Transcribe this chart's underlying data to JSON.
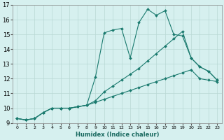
{
  "xlabel": "Humidex (Indice chaleur)",
  "xlim": [
    -0.5,
    23.5
  ],
  "ylim": [
    9,
    17
  ],
  "xticks": [
    0,
    1,
    2,
    3,
    4,
    5,
    6,
    7,
    8,
    9,
    10,
    11,
    12,
    13,
    14,
    15,
    16,
    17,
    18,
    19,
    20,
    21,
    22,
    23
  ],
  "yticks": [
    9,
    10,
    11,
    12,
    13,
    14,
    15,
    16,
    17
  ],
  "bg_color": "#d6f0ef",
  "grid_color": "#b8d8d5",
  "line_color": "#1a7a6e",
  "line1_x": [
    0,
    1,
    2,
    3,
    4,
    5,
    6,
    7,
    8,
    9,
    10,
    11,
    12,
    13,
    14,
    15,
    16,
    17,
    18,
    19,
    20,
    21,
    22,
    23
  ],
  "line1_y": [
    9.3,
    9.2,
    9.3,
    9.7,
    10.0,
    10.0,
    10.0,
    10.1,
    10.2,
    12.1,
    15.1,
    15.3,
    15.4,
    13.4,
    15.8,
    16.7,
    16.3,
    16.6,
    15.0,
    14.9,
    13.4,
    12.8,
    12.5,
    11.9
  ],
  "line2_x": [
    0,
    1,
    2,
    3,
    4,
    5,
    6,
    7,
    8,
    9,
    10,
    11,
    12,
    13,
    14,
    15,
    16,
    17,
    18,
    19,
    20,
    21,
    22,
    23
  ],
  "line2_y": [
    9.3,
    9.2,
    9.3,
    9.7,
    10.0,
    10.0,
    10.0,
    10.1,
    10.2,
    10.5,
    11.1,
    11.5,
    11.9,
    12.3,
    12.7,
    13.2,
    13.7,
    14.2,
    14.7,
    15.2,
    13.4,
    12.8,
    12.5,
    11.9
  ],
  "line3_x": [
    0,
    1,
    2,
    3,
    4,
    5,
    6,
    7,
    8,
    9,
    10,
    11,
    12,
    13,
    14,
    15,
    16,
    17,
    18,
    19,
    20,
    21,
    22,
    23
  ],
  "line3_y": [
    9.3,
    9.2,
    9.3,
    9.7,
    10.0,
    10.0,
    10.0,
    10.1,
    10.2,
    10.4,
    10.6,
    10.8,
    11.0,
    11.2,
    11.4,
    11.6,
    11.8,
    12.0,
    12.2,
    12.4,
    12.6,
    12.0,
    11.9,
    11.8
  ]
}
